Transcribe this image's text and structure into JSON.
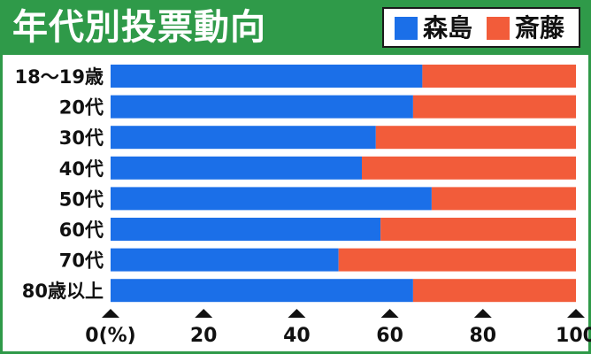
{
  "colors": {
    "header": "#2f9a49",
    "morishima": "#1b6fe8",
    "saito": "#f25c3a"
  },
  "chart_data": {
    "type": "bar",
    "orientation": "horizontal",
    "stacked": true,
    "title": "年代別投票動向",
    "categories": [
      "18～19歳",
      "20代",
      "30代",
      "40代",
      "50代",
      "60代",
      "70代",
      "80歳以上"
    ],
    "series": [
      {
        "name": "森島",
        "color": "#1b6fe8",
        "values": [
          67,
          65,
          57,
          54,
          69,
          58,
          49,
          65
        ]
      },
      {
        "name": "斎藤",
        "color": "#f25c3a",
        "values": [
          33,
          35,
          43,
          46,
          31,
          42,
          51,
          35
        ]
      }
    ],
    "xlim": [
      0,
      100
    ],
    "x_ticks": [
      0,
      20,
      40,
      60,
      80,
      100
    ],
    "x_tick_labels": [
      "0(%)",
      "20",
      "40",
      "60",
      "80",
      "100"
    ],
    "legend": "top-right",
    "grid": false
  }
}
